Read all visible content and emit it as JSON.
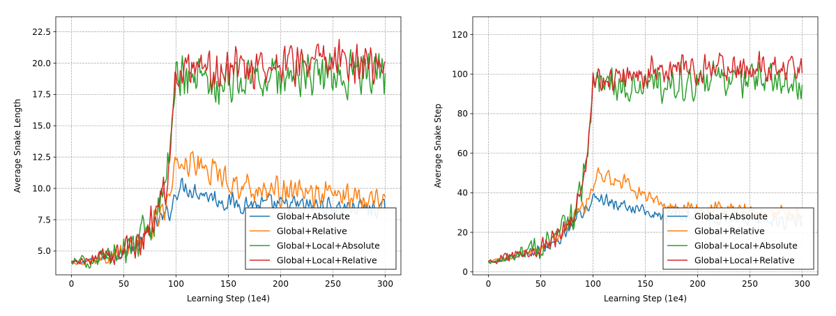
{
  "chart_data": [
    {
      "type": "line",
      "xlabel": "Learning Step (1e4)",
      "ylabel": "Average Snake Length",
      "xlim": [
        -15,
        315
      ],
      "ylim": [
        3.1,
        23.7
      ],
      "xticks": [
        0,
        50,
        100,
        150,
        200,
        250,
        300
      ],
      "yticks": [
        5.0,
        7.5,
        10.0,
        12.5,
        15.0,
        17.5,
        20.0,
        22.5
      ],
      "ytick_labels": [
        "5.0",
        "7.5",
        "10.0",
        "12.5",
        "15.0",
        "17.5",
        "20.0",
        "22.5"
      ],
      "grid": true,
      "legend_position": "lower-right",
      "x": [
        0,
        10,
        20,
        30,
        40,
        50,
        60,
        70,
        80,
        85,
        90,
        95,
        100,
        105,
        110,
        120,
        130,
        140,
        150,
        160,
        170,
        180,
        190,
        200,
        210,
        220,
        230,
        240,
        250,
        260,
        270,
        280,
        290,
        300
      ],
      "series": [
        {
          "name": "Global+Absolute",
          "color": "#1f77b4",
          "noise": 0.9,
          "values": [
            4.1,
            4.15,
            4.25,
            4.4,
            4.6,
            4.8,
            5.3,
            6.0,
            7.1,
            7.5,
            7.8,
            8.3,
            9.8,
            10.2,
            10.1,
            9.8,
            9.5,
            9.1,
            8.9,
            8.8,
            8.8,
            8.7,
            8.7,
            8.6,
            8.7,
            8.6,
            8.6,
            8.6,
            8.5,
            8.5,
            8.5,
            8.4,
            8.4,
            8.3
          ]
        },
        {
          "name": "Global+Relative",
          "color": "#ff7f0e",
          "noise": 1.3,
          "values": [
            4.1,
            4.15,
            4.3,
            4.45,
            4.65,
            4.9,
            5.4,
            6.1,
            7.3,
            8.0,
            8.6,
            9.5,
            11.8,
            12.3,
            12.2,
            11.9,
            11.5,
            11.2,
            10.7,
            10.3,
            10.1,
            9.9,
            9.8,
            9.7,
            9.6,
            9.6,
            9.5,
            9.5,
            9.5,
            9.4,
            9.4,
            9.4,
            9.3,
            9.3
          ]
        },
        {
          "name": "Global+Local+Absolute",
          "color": "#2ca02c",
          "noise": 2.3,
          "values": [
            4.1,
            4.15,
            4.3,
            4.5,
            4.7,
            5.0,
            5.6,
            6.4,
            8.0,
            9.0,
            10.8,
            13.0,
            19.0,
            19.2,
            19.0,
            18.8,
            18.6,
            18.5,
            18.6,
            18.7,
            18.8,
            18.8,
            18.9,
            19.0,
            19.0,
            19.0,
            19.0,
            19.0,
            19.1,
            19.1,
            19.1,
            19.2,
            19.2,
            18.8
          ]
        },
        {
          "name": "Global+Local+Relative",
          "color": "#d62728",
          "noise": 2.0,
          "values": [
            4.1,
            4.15,
            4.3,
            4.5,
            4.75,
            5.0,
            5.5,
            6.3,
            7.9,
            8.8,
            10.3,
            13.0,
            18.8,
            19.3,
            19.0,
            18.9,
            19.0,
            19.2,
            19.4,
            19.6,
            19.7,
            19.8,
            19.8,
            19.9,
            19.9,
            20.0,
            20.0,
            20.0,
            20.0,
            20.1,
            20.1,
            20.1,
            20.1,
            20.2
          ]
        }
      ]
    },
    {
      "type": "line",
      "xlabel": "Learning Step (1e4)",
      "ylabel": "Average Snake Step",
      "xlim": [
        -15,
        315
      ],
      "ylim": [
        -1.5,
        129
      ],
      "xticks": [
        0,
        50,
        100,
        150,
        200,
        250,
        300
      ],
      "yticks": [
        0,
        20,
        40,
        60,
        80,
        100,
        120
      ],
      "ytick_labels": [
        "0",
        "20",
        "40",
        "60",
        "80",
        "100",
        "120"
      ],
      "grid": true,
      "legend_position": "lower-right",
      "x": [
        0,
        10,
        20,
        30,
        40,
        50,
        60,
        70,
        80,
        85,
        90,
        95,
        100,
        105,
        110,
        120,
        130,
        140,
        150,
        160,
        170,
        180,
        190,
        200,
        210,
        220,
        230,
        240,
        250,
        260,
        270,
        280,
        290,
        300
      ],
      "series": [
        {
          "name": "Global+Absolute",
          "color": "#1f77b4",
          "noise": 4.5,
          "values": [
            5,
            6,
            7.5,
            8.5,
            10,
            11.5,
            14,
            18,
            24,
            27,
            30,
            33,
            37,
            38,
            37,
            35,
            33,
            31.5,
            30.5,
            29.5,
            29,
            28.5,
            28,
            27.8,
            27.5,
            27.3,
            27,
            26.8,
            26.6,
            26.4,
            26.2,
            26,
            25.8,
            25.5
          ]
        },
        {
          "name": "Global+Relative",
          "color": "#ff7f0e",
          "noise": 5,
          "values": [
            5,
            6,
            7.5,
            9,
            10.5,
            12,
            15,
            19,
            25.5,
            29,
            32,
            37,
            44,
            48,
            48,
            47,
            45,
            42,
            39,
            36,
            34,
            33,
            32.5,
            32,
            31.5,
            31,
            30.8,
            30.5,
            30.3,
            30,
            29.8,
            29.5,
            29.3,
            29
          ]
        },
        {
          "name": "Global+Local+Absolute",
          "color": "#2ca02c",
          "noise": 11,
          "values": [
            5,
            6,
            7.5,
            9,
            11,
            12.5,
            16,
            20,
            28,
            35,
            45,
            62,
            96,
            98,
            97,
            96,
            95,
            94.5,
            94.5,
            95,
            95.5,
            96,
            96,
            96,
            96.5,
            96.5,
            96.5,
            96.5,
            97,
            97,
            97,
            97,
            97,
            96.5
          ]
        },
        {
          "name": "Global+Local+Relative",
          "color": "#d62728",
          "noise": 9,
          "values": [
            5,
            6,
            7.5,
            9,
            11,
            12.5,
            15.5,
            19.5,
            27.5,
            34,
            44,
            60,
            97,
            99,
            98,
            98,
            98.5,
            99,
            100,
            101,
            101.5,
            102,
            102,
            102.5,
            102.5,
            103,
            103,
            103,
            103,
            103.5,
            103.5,
            103.5,
            103.5,
            104
          ]
        }
      ]
    }
  ]
}
